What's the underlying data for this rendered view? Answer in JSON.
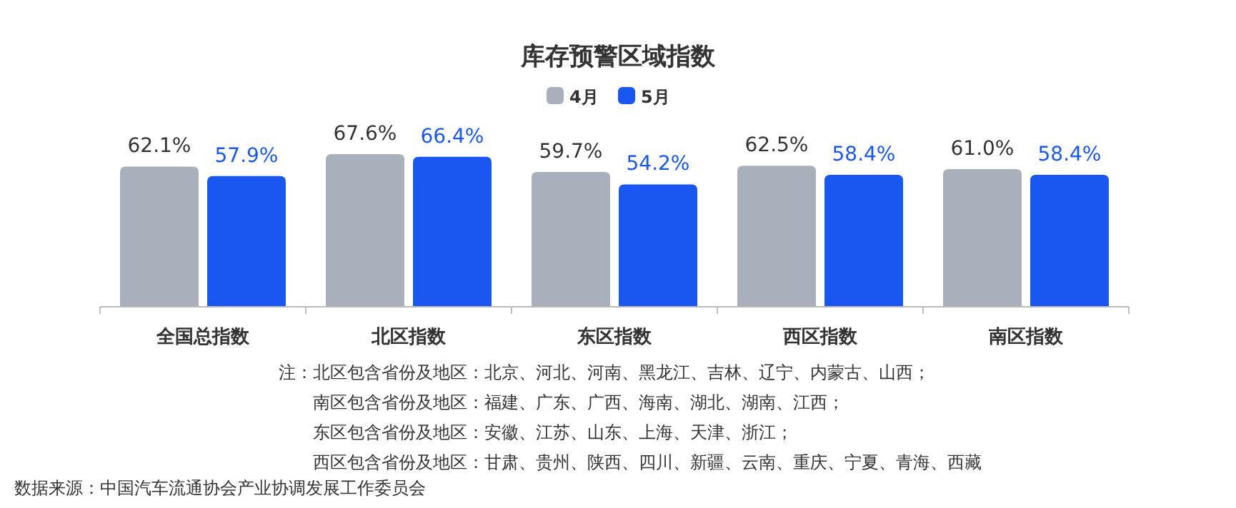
{
  "chart_data": {
    "type": "bar",
    "title": "库存预警区域指数",
    "categories": [
      "全国总指数",
      "北区指数",
      "东区指数",
      "西区指数",
      "南区指数"
    ],
    "series": [
      {
        "name": "4月",
        "color": "#a9b0bb",
        "values": [
          62.1,
          67.6,
          59.7,
          62.5,
          61.0
        ],
        "value_labels": [
          "62.1%",
          "67.6%",
          "59.7%",
          "62.5%",
          "61.0%"
        ]
      },
      {
        "name": "5月",
        "color": "#1a56f0",
        "values": [
          57.9,
          66.4,
          54.2,
          58.4,
          58.4
        ],
        "value_labels": [
          "57.9%",
          "66.4%",
          "54.2%",
          "58.4%",
          "58.4%"
        ]
      }
    ],
    "legend": "top",
    "annotations": [
      "注：北区包含省份及地区：北京、河北、河南、黑龙江、吉林、辽宁、内蒙古、山西；",
      "南区包含省份及地区：福建、广东、广西、海南、湖北、湖南、江西；",
      "东区包含省份及地区：安徽、江苏、山东、上海、天津、浙江；",
      "西区包含省份及地区：甘肃、贵州、陕西、四川、新疆、云南、重庆、宁夏、青海、西藏",
      "数据来源：中国汽车流通协会产业协调发展工作委员会"
    ]
  }
}
